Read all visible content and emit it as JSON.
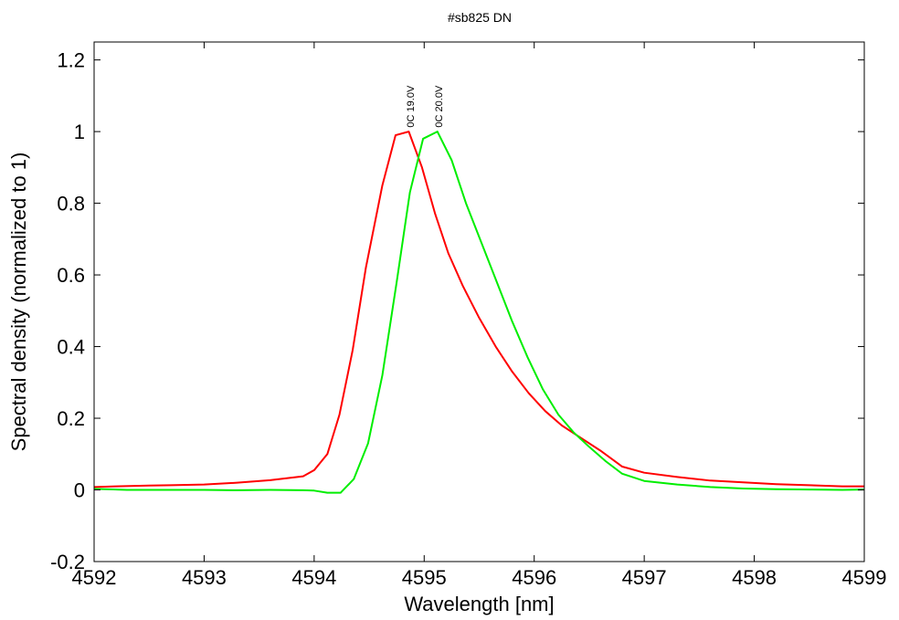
{
  "chart_data": {
    "type": "line",
    "title": "#sb825 DN",
    "xlabel": "Wavelength [nm]",
    "ylabel": "Spectral density (normalized to 1)",
    "xlim": [
      4592,
      4599
    ],
    "ylim": [
      -0.2,
      1.25
    ],
    "x_ticks": [
      "4592",
      "4593",
      "4594",
      "4595",
      "4596",
      "4597",
      "4598",
      "4599"
    ],
    "y_ticks": [
      "-0.2",
      "0",
      "0.2",
      "0.4",
      "0.6",
      "0.8",
      "1",
      "1.2"
    ],
    "grid": false,
    "series": [
      {
        "name": "0C 19.0V",
        "color": "#ff0000",
        "points": [
          [
            4592.0,
            0.008
          ],
          [
            4592.2,
            0.01
          ],
          [
            4592.5,
            0.012
          ],
          [
            4592.7,
            0.013
          ],
          [
            4593.0,
            0.015
          ],
          [
            4593.3,
            0.02
          ],
          [
            4593.6,
            0.027
          ],
          [
            4593.9,
            0.038
          ],
          [
            4594.0,
            0.055
          ],
          [
            4594.12,
            0.1
          ],
          [
            4594.23,
            0.21
          ],
          [
            4594.35,
            0.39
          ],
          [
            4594.47,
            0.62
          ],
          [
            4594.62,
            0.85
          ],
          [
            4594.74,
            0.99
          ],
          [
            4594.86,
            1.0
          ],
          [
            4594.98,
            0.9
          ],
          [
            4595.1,
            0.77
          ],
          [
            4595.22,
            0.66
          ],
          [
            4595.35,
            0.57
          ],
          [
            4595.5,
            0.48
          ],
          [
            4595.65,
            0.4
          ],
          [
            4595.8,
            0.33
          ],
          [
            4595.95,
            0.27
          ],
          [
            4596.1,
            0.22
          ],
          [
            4596.25,
            0.18
          ],
          [
            4596.4,
            0.15
          ],
          [
            4596.6,
            0.11
          ],
          [
            4596.8,
            0.065
          ],
          [
            4597.0,
            0.048
          ],
          [
            4597.3,
            0.036
          ],
          [
            4597.6,
            0.026
          ],
          [
            4597.9,
            0.021
          ],
          [
            4598.2,
            0.016
          ],
          [
            4598.5,
            0.013
          ],
          [
            4598.8,
            0.01
          ],
          [
            4599.0,
            0.01
          ]
        ]
      },
      {
        "name": "0C 20.0V",
        "color": "#00ee00",
        "points": [
          [
            4592.0,
            0.003
          ],
          [
            4592.3,
            0.0
          ],
          [
            4592.6,
            0.0
          ],
          [
            4593.0,
            0.0
          ],
          [
            4593.3,
            -0.001
          ],
          [
            4593.6,
            0.0
          ],
          [
            4593.9,
            -0.001
          ],
          [
            4594.0,
            -0.002
          ],
          [
            4594.12,
            -0.008
          ],
          [
            4594.24,
            -0.008
          ],
          [
            4594.36,
            0.03
          ],
          [
            4594.49,
            0.13
          ],
          [
            4594.62,
            0.32
          ],
          [
            4594.75,
            0.58
          ],
          [
            4594.87,
            0.83
          ],
          [
            4594.99,
            0.98
          ],
          [
            4595.12,
            1.0
          ],
          [
            4595.25,
            0.92
          ],
          [
            4595.38,
            0.8
          ],
          [
            4595.52,
            0.69
          ],
          [
            4595.66,
            0.58
          ],
          [
            4595.8,
            0.47
          ],
          [
            4595.94,
            0.37
          ],
          [
            4596.08,
            0.28
          ],
          [
            4596.22,
            0.21
          ],
          [
            4596.36,
            0.16
          ],
          [
            4596.5,
            0.12
          ],
          [
            4596.65,
            0.08
          ],
          [
            4596.8,
            0.045
          ],
          [
            4597.0,
            0.025
          ],
          [
            4597.3,
            0.015
          ],
          [
            4597.6,
            0.008
          ],
          [
            4597.9,
            0.004
          ],
          [
            4598.2,
            0.002
          ],
          [
            4598.5,
            0.001
          ],
          [
            4598.8,
            0.0
          ],
          [
            4599.0,
            0.001
          ]
        ]
      }
    ],
    "annotations": [
      {
        "text": "0C 19.0V",
        "x": 4594.88,
        "y": 1.07,
        "rotation": -90
      },
      {
        "text": "0C 20.0V",
        "x": 4595.14,
        "y": 1.07,
        "rotation": -90
      }
    ]
  }
}
